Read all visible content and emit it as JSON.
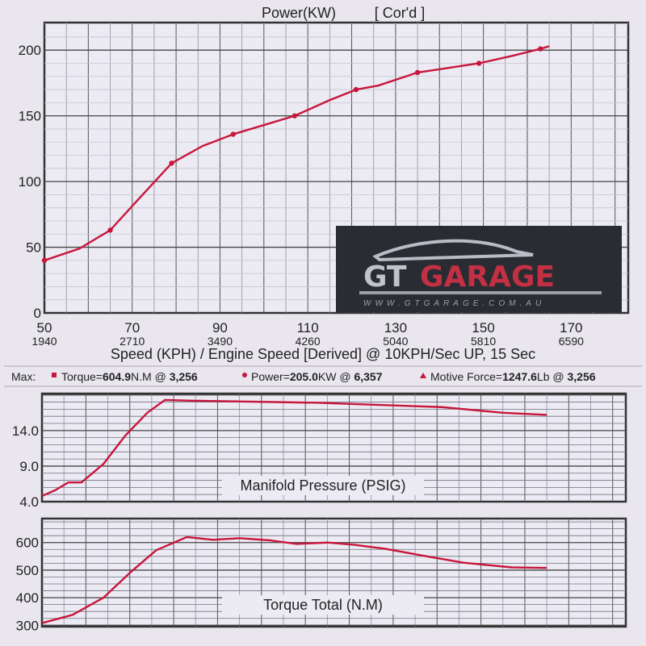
{
  "chart_data": [
    {
      "type": "line",
      "title": "Power(KW)",
      "title_note": "[ Cor'd ]",
      "xlabel": "Speed (KPH) / Engine Speed [Derived] @ 10KPH/Sec UP, 15 Sec",
      "ylabel": "",
      "x_ticks": [
        "50",
        "70",
        "90",
        "110",
        "130",
        "150",
        "170"
      ],
      "x_subticks": [
        "1940",
        "2710",
        "3490",
        "4260",
        "5040",
        "5810",
        "6590"
      ],
      "y_ticks": [
        "0",
        "50",
        "100",
        "150",
        "200"
      ],
      "xlim": [
        50,
        183
      ],
      "ylim": [
        0,
        221
      ],
      "grid": true,
      "color": "#c8163c",
      "series": [
        {
          "points": [
            [
              50,
              40
            ],
            [
              58,
              49
            ],
            [
              65,
              63
            ],
            [
              71,
              85
            ],
            [
              79,
              114
            ],
            [
              86,
              127
            ],
            [
              93,
              136
            ],
            [
              100,
              143
            ],
            [
              107,
              150
            ],
            [
              115,
              162
            ],
            [
              121,
              170
            ],
            [
              126,
              173
            ],
            [
              135,
              183
            ],
            [
              141,
              186
            ],
            [
              149,
              190
            ],
            [
              157,
              196
            ],
            [
              163,
              201
            ],
            [
              165,
              203
            ]
          ],
          "markers": [
            [
              50,
              40
            ],
            [
              65,
              63
            ],
            [
              79,
              114
            ],
            [
              93,
              136
            ],
            [
              107,
              150
            ],
            [
              121,
              170
            ],
            [
              135,
              183
            ],
            [
              149,
              190
            ],
            [
              163,
              201
            ]
          ]
        }
      ]
    },
    {
      "type": "line",
      "title": "Manifold Pressure (PSIG)",
      "y_ticks": [
        "4.0",
        "9.0",
        "14.0"
      ],
      "xlim": [
        50,
        183
      ],
      "ylim": [
        4,
        19.2
      ],
      "grid": true,
      "color": "#c8163c",
      "series": [
        {
          "points": [
            [
              50,
              4.8
            ],
            [
              53,
              5.6
            ],
            [
              56,
              6.7
            ],
            [
              59,
              6.7
            ],
            [
              64,
              9.3
            ],
            [
              69,
              13.3
            ],
            [
              74,
              16.5
            ],
            [
              78,
              18.3
            ],
            [
              84,
              18.2
            ],
            [
              113,
              17.9
            ],
            [
              141,
              17.3
            ],
            [
              155,
              16.5
            ],
            [
              165,
              16.2
            ]
          ]
        }
      ]
    },
    {
      "type": "line",
      "title": "Torque Total (N.M)",
      "y_ticks": [
        "300",
        "400",
        "500",
        "600"
      ],
      "xlim": [
        50,
        183
      ],
      "ylim": [
        295,
        687
      ],
      "grid": true,
      "color": "#c8163c",
      "series": [
        {
          "points": [
            [
              50,
              308
            ],
            [
              57,
              338
            ],
            [
              64,
              400
            ],
            [
              70,
              490
            ],
            [
              76,
              572
            ],
            [
              83,
              620
            ],
            [
              89,
              610
            ],
            [
              95,
              616
            ],
            [
              102,
              608
            ],
            [
              108,
              595
            ],
            [
              115,
              600
            ],
            [
              121,
              592
            ],
            [
              128,
              578
            ],
            [
              137,
              552
            ],
            [
              146,
              527
            ],
            [
              157,
              510
            ],
            [
              165,
              508
            ]
          ]
        }
      ]
    }
  ],
  "legend": {
    "max_label": "Max:",
    "torque": {
      "label": "Torque=",
      "value": "604.9",
      "unit": "N.M @",
      "at": "3,256",
      "color": "#c8163c"
    },
    "power": {
      "label": "Power=",
      "value": "205.0",
      "unit": "KW @",
      "at": "6,357",
      "color": "#c8163c"
    },
    "force": {
      "label": "Motive Force=",
      "value": "1247.6",
      "unit": "Lb @",
      "at": "3,256",
      "color": "#c8163c"
    }
  },
  "logo": {
    "text_left": "GT",
    "text_right": "GARAGE",
    "url": "WWW.GTGARAGE.COM.AU"
  }
}
